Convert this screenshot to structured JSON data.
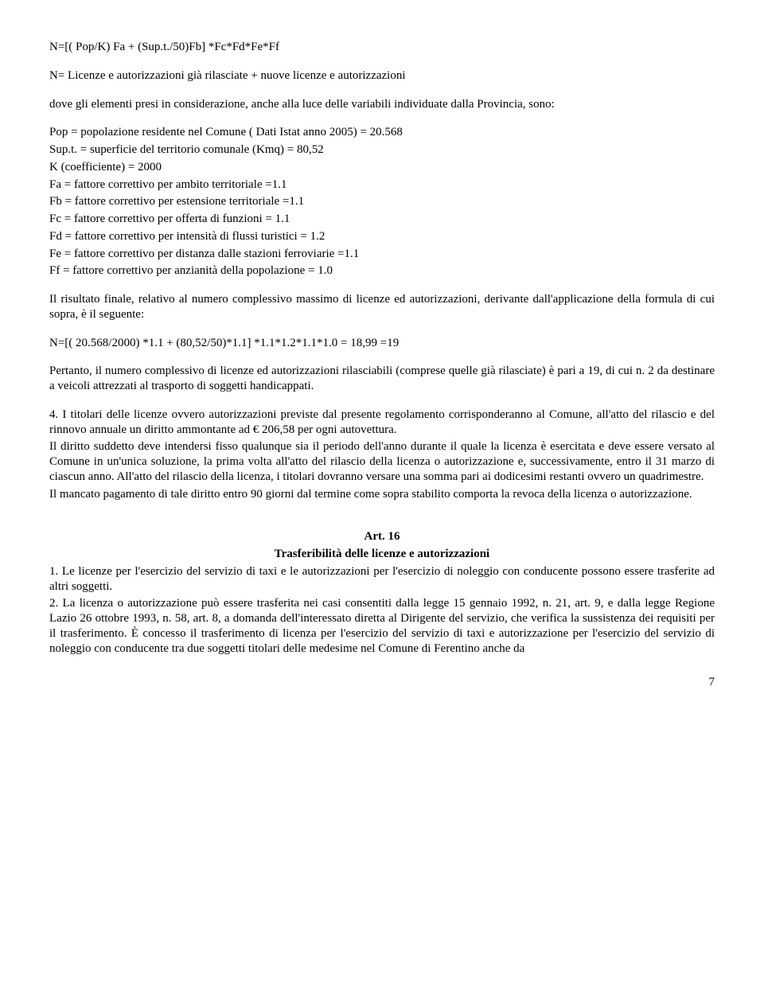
{
  "formula_header": "N=[( Pop/K) Fa + (Sup.t./50)Fb] *Fc*Fd*Fe*Ff",
  "definition_line": "N= Licenze e autorizzazioni già rilasciate + nuove licenze e autorizzazioni",
  "where_clause": "dove gli elementi presi in considerazione, anche alla luce delle variabili individuate dalla Provincia, sono:",
  "vars": [
    "Pop = popolazione residente nel Comune  ( Dati Istat anno 2005) = 20.568",
    "Sup.t. = superficie del territorio comunale (Kmq) = 80,52",
    "K (coefficiente) = 2000",
    "Fa = fattore correttivo per ambito territoriale =1.1",
    "Fb = fattore correttivo per estensione territoriale =1.1",
    "Fc = fattore correttivo per offerta di funzioni = 1.1",
    "Fd = fattore correttivo per intensità di flussi turistici = 1.2",
    "Fe = fattore correttivo per distanza dalle stazioni ferroviarie =1.1",
    "Ff = fattore correttivo per anzianità della popolazione = 1.0"
  ],
  "result_intro": "Il risultato finale, relativo al numero complessivo massimo di licenze ed autorizzazioni, derivante dall'applicazione della formula di cui sopra, è il seguente:",
  "result_formula": "N=[( 20.568/2000) *1.1 + (80,52/50)*1.1] *1.1*1.2*1.1*1.0 = 18,99 =19",
  "pertanto": "Pertanto, il numero complessivo di licenze ed autorizzazioni rilasciabili (comprese quelle già rilasciate) è pari a 19, di cui n. 2 da destinare a veicoli attrezzati al trasporto di soggetti handicappati.",
  "clause4": "4. I titolari delle licenze ovvero autorizzazioni previste dal presente regolamento corrisponderanno al Comune, all'atto del rilascio e del rinnovo annuale un diritto ammontante ad € 206,58 per ogni autovettura.",
  "diritto_para": "Il diritto suddetto deve intendersi fisso qualunque sia il periodo dell'anno durante il quale la licenza è esercitata e deve essere versato al Comune in un'unica soluzione, la prima volta all'atto del rilascio della licenza o autorizzazione e, successivamente, entro il 31 marzo di ciascun anno. All'atto del rilascio della licenza, i titolari dovranno versare una somma pari ai dodicesimi restanti ovvero un quadrimestre.",
  "mancato": "Il mancato pagamento di tale diritto entro 90 giorni dal termine come sopra stabilito comporta la revoca della licenza o autorizzazione.",
  "art_number": "Art. 16",
  "art_title": "Trasferibilità delle licenze e autorizzazioni",
  "art_c1": "1. Le licenze per l'esercizio del servizio di taxi e le autorizzazioni per l'esercizio di noleggio con conducente possono essere trasferite ad altri soggetti.",
  "art_c2": "2. La licenza o autorizzazione può essere trasferita nei casi consentiti dalla legge 15 gennaio 1992, n. 21, art. 9, e dalla legge Regione Lazio 26 ottobre 1993, n. 58, art. 8, a domanda dell'interessato diretta al Dirigente del servizio, che verifica la sussistenza dei requisiti per il trasferimento. È concesso il trasferimento di licenza per l'esercizio del servizio di taxi e autorizzazione per l'esercizio del servizio di noleggio con conducente tra due soggetti titolari delle medesime nel Comune di Ferentino anche da",
  "page_number": "7"
}
